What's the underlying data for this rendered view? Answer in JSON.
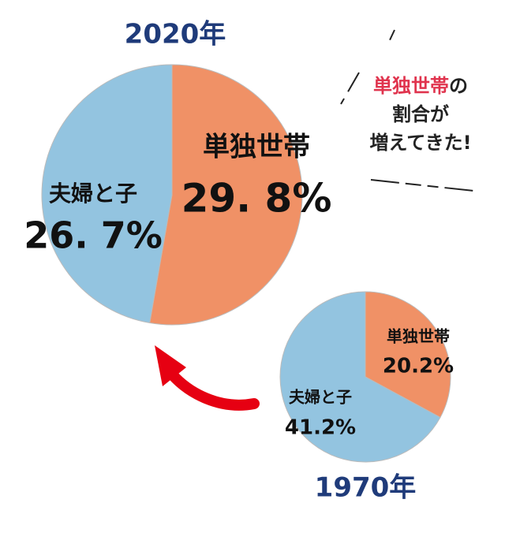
{
  "chart_data": [
    {
      "type": "pie",
      "title": "2020年",
      "categories": [
        "単独世帯",
        "夫婦と子"
      ],
      "values": [
        29.8,
        26.7
      ],
      "value_labels": [
        "29. 8%",
        "26. 7%"
      ],
      "colors": [
        "#f09166",
        "#93c4e0"
      ]
    },
    {
      "type": "pie",
      "title": "1970年",
      "categories": [
        "単独世帯",
        "夫婦と子"
      ],
      "values": [
        20.2,
        41.2
      ],
      "value_labels": [
        "20.2%",
        "41.2%"
      ],
      "colors": [
        "#f09166",
        "#93c4e0"
      ]
    }
  ],
  "annotation": {
    "highlight": "単独世帯",
    "lines": [
      "の",
      "割合が",
      "増えてきた!"
    ]
  }
}
